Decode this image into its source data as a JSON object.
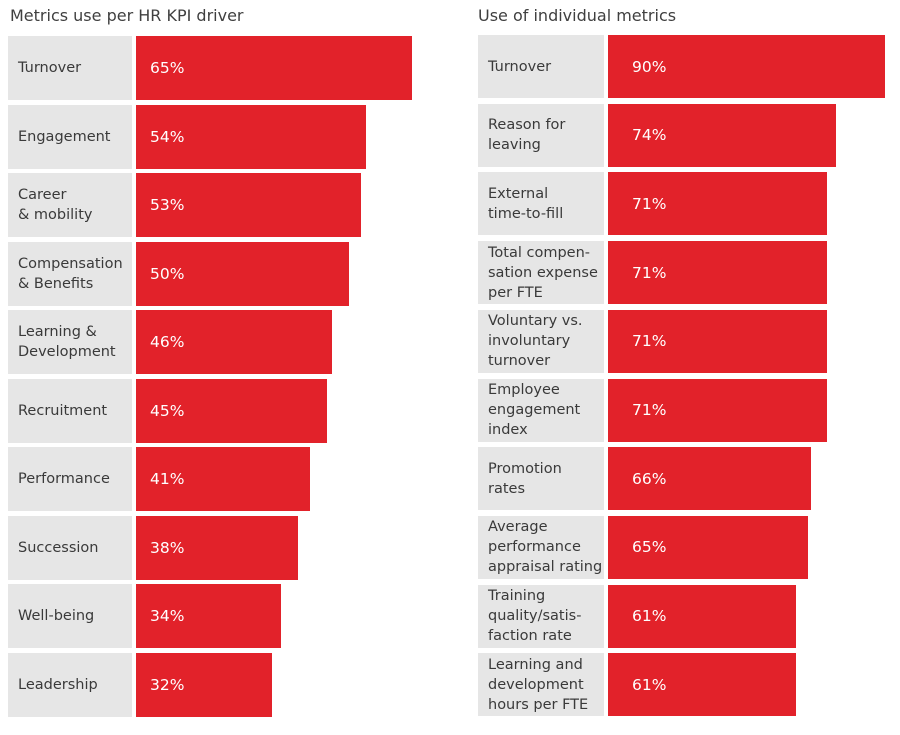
{
  "chart_data": [
    {
      "type": "bar",
      "orientation": "horizontal",
      "title": "Metrics use per HR KPI driver",
      "categories": [
        "Turnover",
        "Engagement",
        "Career\n& mobility",
        "Compensation\n& Benefits",
        "Learning &\nDevelopment",
        "Recruitment",
        "Performance",
        "Succession",
        "Well-being",
        "Leadership"
      ],
      "values": [
        65,
        54,
        53,
        50,
        46,
        45,
        41,
        38,
        34,
        32
      ],
      "value_labels": [
        "65%",
        "54%",
        "53%",
        "50%",
        "46%",
        "45%",
        "41%",
        "38%",
        "34%",
        "32%"
      ],
      "xlim": [
        0,
        100
      ],
      "xlabel": "",
      "ylabel": "",
      "bar_color": "#e2222a",
      "label_bg_color": "#e6e6e6"
    },
    {
      "type": "bar",
      "orientation": "horizontal",
      "title": "Use of individual metrics",
      "categories": [
        "Turnover",
        "Reason for\nleaving",
        "External\ntime-to-fill",
        "Total compen-\nsation expense\nper FTE",
        "Voluntary vs.\ninvoluntary\nturnover",
        "Employee\nengagement\nindex",
        "Promotion\nrates",
        "Average\nperformance\nappraisal rating",
        "Training\nquality/satis-\nfaction rate",
        "Learning and\ndevelopment\nhours per FTE"
      ],
      "values": [
        90,
        74,
        71,
        71,
        71,
        71,
        66,
        65,
        61,
        61
      ],
      "value_labels": [
        "90%",
        "74%",
        "71%",
        "71%",
        "71%",
        "71%",
        "66%",
        "65%",
        "61%",
        "61%"
      ],
      "xlim": [
        0,
        100
      ],
      "xlabel": "",
      "ylabel": "",
      "bar_color": "#e2222a",
      "label_bg_color": "#e6e6e6"
    }
  ]
}
